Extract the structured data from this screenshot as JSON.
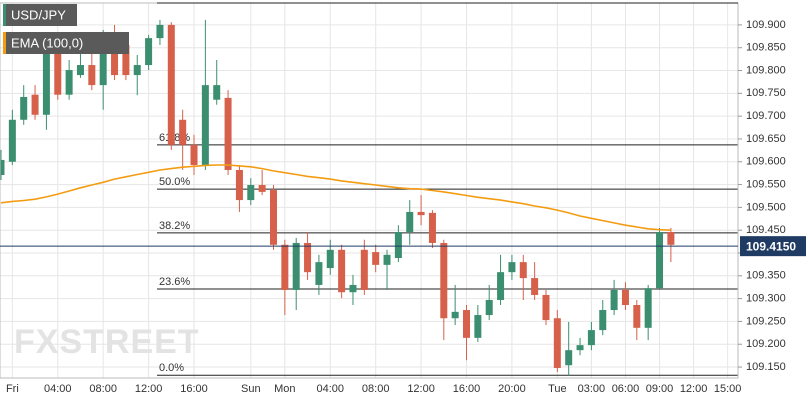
{
  "chart_data": {
    "type": "candlestick",
    "watermark": "FXSTREET",
    "categories": [
      null,
      "Fri",
      null,
      null,
      null,
      "04:00",
      null,
      null,
      null,
      "08:00",
      null,
      null,
      null,
      "12:00",
      null,
      null,
      null,
      "16:00",
      null,
      null,
      null,
      null,
      "Sun",
      null,
      null,
      "Mon",
      null,
      null,
      null,
      "04:00",
      null,
      null,
      null,
      "08:00",
      null,
      null,
      null,
      "12:00",
      null,
      null,
      null,
      "16:00",
      null,
      null,
      null,
      "20:00",
      null,
      null,
      null,
      "Tue",
      null,
      null,
      "03:00",
      null,
      null,
      "06:00",
      null,
      null,
      "09:00",
      null,
      null,
      "12:00",
      null,
      null,
      "15:00"
    ],
    "series": [
      {
        "name": "USD/JPY",
        "type": "candlestick",
        "up_color": "#3b8f70",
        "down_color": "#d6604a",
        "open": [
          109.571,
          109.6,
          109.692,
          109.747,
          109.703,
          109.856,
          109.747,
          109.79,
          109.812,
          109.768,
          109.878,
          109.856,
          109.79,
          109.812,
          109.871,
          109.9,
          109.692,
          109.637,
          109.593,
          109.736,
          109.74,
          109.582,
          109.516,
          109.549,
          109.538,
          109.418,
          109.319,
          109.422,
          109.33,
          109.367,
          109.407,
          109.314,
          109.407,
          109.402,
          109.374,
          109.389,
          109.446,
          109.49,
          109.488,
          109.422,
          109.257,
          109.275,
          109.214,
          109.264,
          109.297,
          109.358,
          109.38,
          109.345,
          109.308,
          109.257,
          109.154,
          109.187,
          109.198,
          109.231,
          109.275,
          109.319,
          109.286,
          109.236,
          109.323,
          109.446,
          null,
          null,
          null,
          null,
          null
        ],
        "high": [
          109.626,
          109.714,
          109.768,
          109.768,
          109.878,
          109.878,
          109.823,
          109.845,
          109.845,
          109.889,
          109.9,
          109.867,
          109.834,
          109.878,
          109.911,
          109.906,
          109.714,
          109.659,
          109.911,
          109.823,
          109.757,
          109.593,
          109.564,
          109.582,
          109.549,
          109.429,
          109.433,
          109.446,
          109.396,
          109.429,
          109.418,
          109.352,
          109.429,
          109.418,
          109.407,
          109.461,
          109.516,
          109.527,
          109.494,
          109.429,
          109.33,
          109.286,
          109.286,
          109.33,
          109.396,
          109.396,
          109.396,
          109.38,
          109.319,
          109.275,
          109.249,
          109.214,
          109.249,
          109.297,
          109.341,
          109.336,
          109.297,
          109.33,
          109.455,
          109.455,
          null,
          null,
          null,
          null,
          null
        ],
        "low": [
          109.56,
          109.593,
          109.681,
          109.692,
          109.67,
          109.736,
          109.736,
          109.784,
          109.757,
          109.714,
          109.779,
          109.779,
          109.746,
          109.801,
          109.856,
          109.626,
          109.582,
          109.571,
          109.582,
          109.725,
          109.571,
          109.49,
          109.505,
          109.527,
          109.407,
          109.264,
          109.275,
          109.341,
          109.308,
          109.352,
          109.301,
          109.286,
          109.308,
          109.358,
          109.319,
          109.38,
          109.418,
          109.461,
          109.411,
          109.209,
          109.242,
          109.165,
          109.205,
          109.253,
          109.286,
          109.341,
          109.297,
          109.297,
          109.242,
          109.139,
          109.132,
          109.176,
          109.187,
          109.22,
          109.264,
          109.275,
          109.209,
          109.209,
          109.319,
          109.38,
          null,
          null,
          null,
          null,
          null
        ],
        "close": [
          109.604,
          109.692,
          109.742,
          109.703,
          109.856,
          109.747,
          109.801,
          109.812,
          109.768,
          109.867,
          109.79,
          109.79,
          109.812,
          109.871,
          109.9,
          109.637,
          109.637,
          109.593,
          109.768,
          109.768,
          109.582,
          109.516,
          109.549,
          109.534,
          109.418,
          109.319,
          109.422,
          109.358,
          109.38,
          109.407,
          109.314,
          109.33,
          109.319,
          109.374,
          109.396,
          109.446,
          109.49,
          109.483,
          109.422,
          109.257,
          109.271,
          109.214,
          109.264,
          109.297,
          109.358,
          109.38,
          109.345,
          109.308,
          109.253,
          109.148,
          109.187,
          109.198,
          109.231,
          109.275,
          109.319,
          109.286,
          109.236,
          109.323,
          109.446,
          109.418,
          null,
          null,
          null,
          null,
          null
        ]
      },
      {
        "name": "EMA (100,0)",
        "type": "line",
        "color": "#f39c12",
        "values": [
          109.51,
          109.513,
          109.515,
          109.518,
          109.523,
          109.529,
          109.536,
          109.543,
          109.549,
          109.555,
          109.562,
          109.567,
          109.572,
          109.577,
          109.582,
          109.585,
          109.588,
          109.59,
          109.592,
          109.593,
          109.593,
          109.591,
          109.589,
          109.585,
          109.58,
          109.576,
          109.572,
          109.568,
          109.565,
          109.562,
          109.558,
          109.555,
          109.552,
          109.549,
          109.546,
          109.543,
          109.541,
          109.54,
          109.537,
          109.534,
          109.53,
          109.526,
          109.522,
          109.519,
          109.516,
          109.512,
          109.508,
          109.503,
          109.499,
          109.494,
          109.488,
          109.481,
          109.476,
          109.471,
          109.466,
          109.461,
          109.457,
          109.453,
          109.451,
          109.45,
          null,
          null,
          null,
          null,
          null
        ]
      }
    ],
    "fib_levels": [
      {
        "label": "61.8%",
        "value": 109.637
      },
      {
        "label": "50.0%",
        "value": 109.54
      },
      {
        "label": "38.2%",
        "value": 109.444
      },
      {
        "label": "23.6%",
        "value": 109.321
      },
      {
        "label": "0.0%",
        "value": 109.132
      }
    ],
    "last_price": {
      "value": 109.415,
      "label": "109.4150"
    },
    "ylim": [
      109.126,
      109.948
    ],
    "yticks": [
      {
        "value": 109.15,
        "label": "109.150"
      },
      {
        "value": 109.2,
        "label": "109.200"
      },
      {
        "value": 109.25,
        "label": "109.250"
      },
      {
        "value": 109.3,
        "label": "109.300"
      },
      {
        "value": 109.35,
        "label": "109.350"
      },
      {
        "value": 109.4,
        "label": "109.400"
      },
      {
        "value": 109.45,
        "label": "109.450"
      },
      {
        "value": 109.5,
        "label": "109.500"
      },
      {
        "value": 109.55,
        "label": "109.550"
      },
      {
        "value": 109.6,
        "label": "109.600"
      },
      {
        "value": 109.65,
        "label": "109.650"
      },
      {
        "value": 109.7,
        "label": "109.700"
      },
      {
        "value": 109.75,
        "label": "109.750"
      },
      {
        "value": 109.8,
        "label": "109.800"
      },
      {
        "value": 109.85,
        "label": "109.850"
      },
      {
        "value": 109.9,
        "label": "109.900"
      }
    ],
    "grid": true
  }
}
